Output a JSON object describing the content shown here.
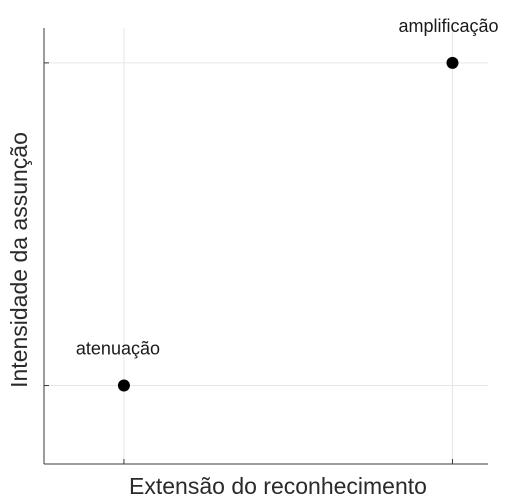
{
  "chart_data": {
    "type": "scatter",
    "title": "",
    "xlabel": "Extensão do reconhecimento",
    "ylabel": "Intensidade da assunção",
    "xlim": [
      0,
      1
    ],
    "ylim": [
      0,
      1
    ],
    "x_ticks": [
      0.18,
      0.92
    ],
    "y_ticks": [
      0.18,
      0.92
    ],
    "tick_labels_shown": false,
    "grid": true,
    "legend": "none",
    "points": [
      {
        "label": "atenuação",
        "x": 0.18,
        "y": 0.18
      },
      {
        "label": "amplificação",
        "x": 0.92,
        "y": 0.92
      }
    ],
    "colors": {
      "point": "#000000",
      "grid": "#e6e6e6",
      "axis": "#3a3a3a",
      "text": "#1a1a1a"
    }
  }
}
